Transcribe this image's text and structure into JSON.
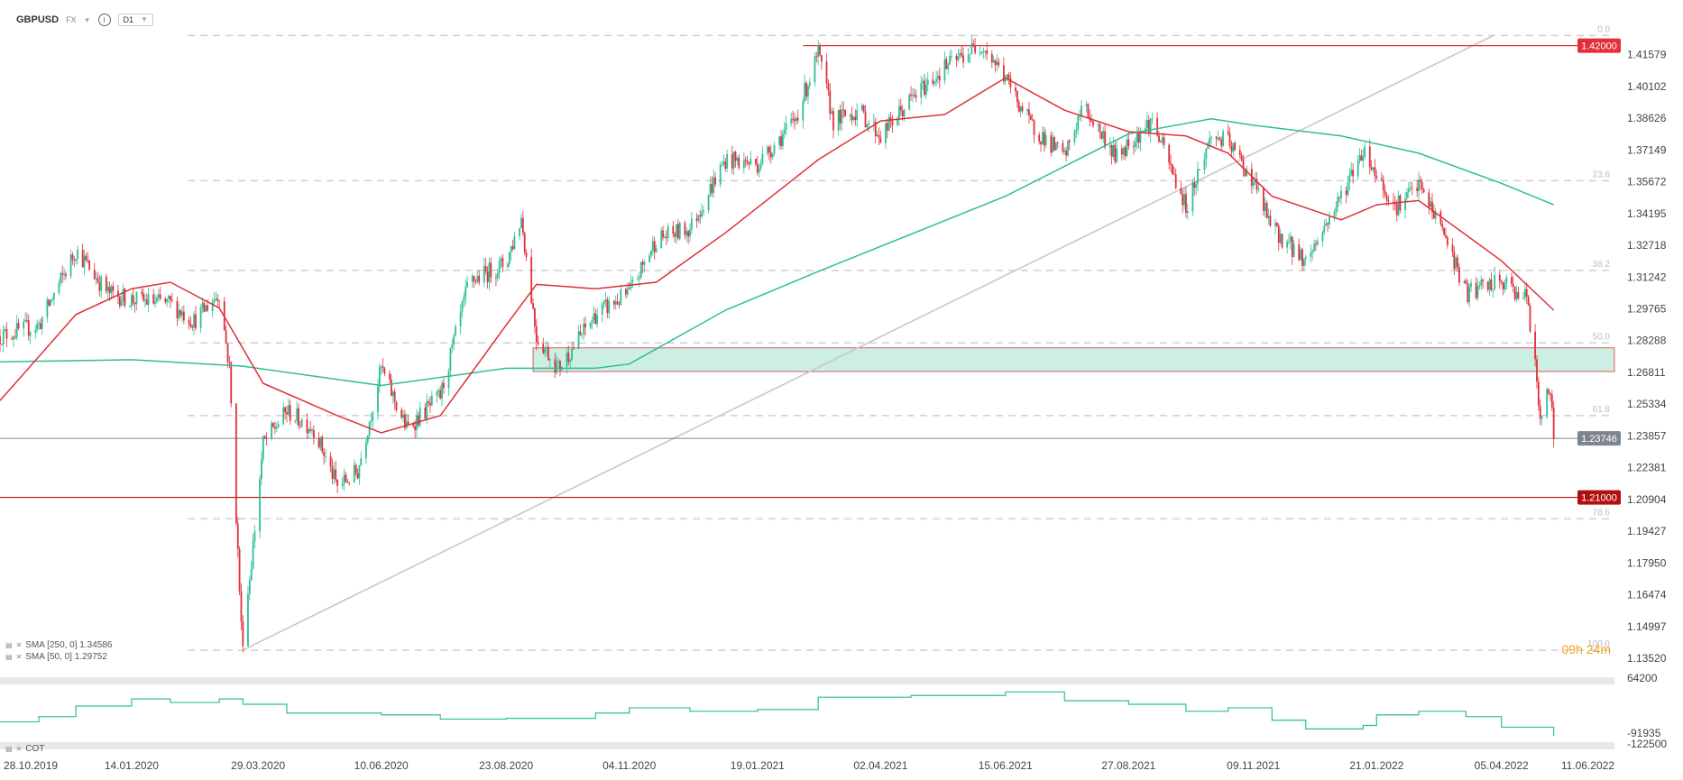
{
  "toolbar": {
    "symbol": "GBPUSD",
    "type": "FX",
    "timeframe": "D1"
  },
  "indicators": [
    {
      "label": "SMA [250, 0] 1.34586",
      "color": "#2bbf97"
    },
    {
      "label": "SMA [50, 0] 1.29752",
      "color": "#e0303a"
    }
  ],
  "cot_label": "COT",
  "timer": "09h 24m",
  "colors": {
    "up": "#2bbf97",
    "down": "#e0303a",
    "sma250": "#2bbf97",
    "sma50": "#e0303a",
    "zone": "#cdeee3"
  },
  "chart_data": {
    "type": "candlestick",
    "title": "GBPUSD",
    "timeframe": "D1",
    "x_tick_labels": [
      "28.10.2019",
      "14.01.2020",
      "29.03.2020",
      "10.06.2020",
      "23.08.2020",
      "04.11.2020",
      "19.01.2021",
      "02.04.2021",
      "15.06.2021",
      "27.08.2021",
      "09.11.2021",
      "21.01.2022",
      "05.04.2022",
      "11.06.2022"
    ],
    "y_tick_labels": [
      "1.41579",
      "1.40102",
      "1.38626",
      "1.37149",
      "1.35672",
      "1.34195",
      "1.32718",
      "1.31242",
      "1.29765",
      "1.28288",
      "1.26811",
      "1.25334",
      "1.23857",
      "1.22381",
      "1.20904",
      "1.19427",
      "1.17950",
      "1.16474",
      "1.14997",
      "1.13520"
    ],
    "ylim": [
      1.1352,
      1.432
    ],
    "current_price": "1.23746",
    "horizontal_levels": [
      {
        "label": "1.42000",
        "value": 1.42,
        "color": "#e0303a"
      },
      {
        "label": "1.21000",
        "value": 1.21,
        "color": "#b01010"
      }
    ],
    "fibonacci_levels": [
      {
        "label": "0.0",
        "value": 1.4247
      },
      {
        "label": "23.6",
        "value": 1.3572
      },
      {
        "label": "38.2",
        "value": 1.3155
      },
      {
        "label": "50.0",
        "value": 1.2818
      },
      {
        "label": "61.8",
        "value": 1.248
      },
      {
        "label": "78.6",
        "value": 1.2
      },
      {
        "label": "100.0",
        "value": 1.1389
      }
    ],
    "zone": {
      "low": 1.2685,
      "high": 1.2795
    },
    "trendline": {
      "from": {
        "x": "2020-03-20",
        "y": 1.139
      },
      "to": {
        "x": "2022-04-01",
        "y": 1.425
      }
    },
    "price_path": [
      [
        "2019-10-28",
        1.285
      ],
      [
        "2019-11-20",
        1.29
      ],
      [
        "2019-12-12",
        1.325
      ],
      [
        "2019-12-31",
        1.305
      ],
      [
        "2020-01-14",
        1.302
      ],
      [
        "2020-02-06",
        1.3
      ],
      [
        "2020-02-20",
        1.292
      ],
      [
        "2020-03-06",
        1.305
      ],
      [
        "2020-03-12",
        1.27
      ],
      [
        "2020-03-19",
        1.15
      ],
      [
        "2020-03-20",
        1.145
      ],
      [
        "2020-03-25",
        1.18
      ],
      [
        "2020-04-01",
        1.235
      ],
      [
        "2020-04-15",
        1.25
      ],
      [
        "2020-05-01",
        1.242
      ],
      [
        "2020-05-15",
        1.215
      ],
      [
        "2020-05-27",
        1.222
      ],
      [
        "2020-06-10",
        1.27
      ],
      [
        "2020-06-25",
        1.242
      ],
      [
        "2020-07-15",
        1.257
      ],
      [
        "2020-08-01",
        1.31
      ],
      [
        "2020-08-23",
        1.319
      ],
      [
        "2020-09-01",
        1.34
      ],
      [
        "2020-09-10",
        1.285
      ],
      [
        "2020-09-23",
        1.27
      ],
      [
        "2020-10-15",
        1.295
      ],
      [
        "2020-11-04",
        1.305
      ],
      [
        "2020-11-20",
        1.33
      ],
      [
        "2020-12-10",
        1.335
      ],
      [
        "2020-12-31",
        1.367
      ],
      [
        "2021-01-19",
        1.365
      ],
      [
        "2021-02-10",
        1.385
      ],
      [
        "2021-02-24",
        1.416
      ],
      [
        "2021-03-05",
        1.385
      ],
      [
        "2021-03-20",
        1.39
      ],
      [
        "2021-04-02",
        1.378
      ],
      [
        "2021-04-20",
        1.395
      ],
      [
        "2021-05-10",
        1.41
      ],
      [
        "2021-06-01",
        1.421
      ],
      [
        "2021-06-15",
        1.405
      ],
      [
        "2021-06-30",
        1.383
      ],
      [
        "2021-07-20",
        1.368
      ],
      [
        "2021-07-31",
        1.392
      ],
      [
        "2021-08-20",
        1.368
      ],
      [
        "2021-08-27",
        1.375
      ],
      [
        "2021-09-10",
        1.385
      ],
      [
        "2021-09-30",
        1.345
      ],
      [
        "2021-10-15",
        1.378
      ],
      [
        "2021-10-25",
        1.375
      ],
      [
        "2021-11-09",
        1.357
      ],
      [
        "2021-11-20",
        1.335
      ],
      [
        "2021-12-10",
        1.32
      ],
      [
        "2021-12-31",
        1.35
      ],
      [
        "2022-01-13",
        1.372
      ],
      [
        "2022-01-21",
        1.36
      ],
      [
        "2022-02-01",
        1.345
      ],
      [
        "2022-02-15",
        1.355
      ],
      [
        "2022-03-01",
        1.335
      ],
      [
        "2022-03-15",
        1.305
      ],
      [
        "2022-04-05",
        1.31
      ],
      [
        "2022-04-20",
        1.303
      ],
      [
        "2022-04-25",
        1.27
      ],
      [
        "2022-04-28",
        1.248
      ],
      [
        "2022-05-04",
        1.26
      ],
      [
        "2022-05-06",
        1.2375
      ]
    ],
    "series": [
      {
        "name": "SMA [250, 0] 1.34586",
        "points": [
          [
            "2019-10-28",
            1.273
          ],
          [
            "2020-01-14",
            1.274
          ],
          [
            "2020-03-20",
            1.271
          ],
          [
            "2020-06-10",
            1.262
          ],
          [
            "2020-08-23",
            1.27
          ],
          [
            "2020-10-15",
            1.27
          ],
          [
            "2020-11-04",
            1.272
          ],
          [
            "2020-12-31",
            1.297
          ],
          [
            "2021-02-24",
            1.315
          ],
          [
            "2021-06-15",
            1.35
          ],
          [
            "2021-08-27",
            1.379
          ],
          [
            "2021-10-15",
            1.386
          ],
          [
            "2021-11-09",
            1.383
          ],
          [
            "2021-12-31",
            1.378
          ],
          [
            "2022-02-15",
            1.37
          ],
          [
            "2022-04-05",
            1.356
          ],
          [
            "2022-05-06",
            1.346
          ]
        ]
      },
      {
        "name": "SMA [50, 0] 1.29752",
        "points": [
          [
            "2019-10-28",
            1.255
          ],
          [
            "2019-12-12",
            1.295
          ],
          [
            "2020-01-14",
            1.307
          ],
          [
            "2020-02-06",
            1.31
          ],
          [
            "2020-03-06",
            1.298
          ],
          [
            "2020-04-01",
            1.263
          ],
          [
            "2020-05-15",
            1.248
          ],
          [
            "2020-06-10",
            1.24
          ],
          [
            "2020-07-15",
            1.248
          ],
          [
            "2020-08-23",
            1.29
          ],
          [
            "2020-09-10",
            1.309
          ],
          [
            "2020-10-15",
            1.307
          ],
          [
            "2020-11-20",
            1.31
          ],
          [
            "2020-12-31",
            1.333
          ],
          [
            "2021-02-24",
            1.367
          ],
          [
            "2021-04-02",
            1.385
          ],
          [
            "2021-05-10",
            1.388
          ],
          [
            "2021-06-15",
            1.405
          ],
          [
            "2021-07-20",
            1.39
          ],
          [
            "2021-08-27",
            1.38
          ],
          [
            "2021-09-30",
            1.378
          ],
          [
            "2021-10-25",
            1.37
          ],
          [
            "2021-11-20",
            1.35
          ],
          [
            "2021-12-31",
            1.339
          ],
          [
            "2022-01-21",
            1.346
          ],
          [
            "2022-02-15",
            1.348
          ],
          [
            "2022-04-05",
            1.32
          ],
          [
            "2022-05-06",
            1.297
          ]
        ]
      }
    ],
    "sub_panel": {
      "name": "COT",
      "y_tick_labels": [
        "64200",
        "-91935",
        "-122500"
      ],
      "ylim": [
        -122500,
        64200
      ],
      "points": [
        [
          "2019-10-28",
          -60000
        ],
        [
          "2019-11-20",
          -45000
        ],
        [
          "2019-12-12",
          -15000
        ],
        [
          "2020-01-14",
          5000
        ],
        [
          "2020-02-06",
          -5000
        ],
        [
          "2020-03-06",
          5000
        ],
        [
          "2020-03-20",
          -10000
        ],
        [
          "2020-04-15",
          -35000
        ],
        [
          "2020-06-10",
          -40000
        ],
        [
          "2020-07-15",
          -52000
        ],
        [
          "2020-08-23",
          -50000
        ],
        [
          "2020-10-15",
          -35000
        ],
        [
          "2020-11-04",
          -20000
        ],
        [
          "2020-12-10",
          -30000
        ],
        [
          "2021-01-19",
          -25000
        ],
        [
          "2021-02-24",
          10000
        ],
        [
          "2021-04-20",
          15000
        ],
        [
          "2021-06-15",
          25000
        ],
        [
          "2021-07-20",
          0
        ],
        [
          "2021-08-27",
          -10000
        ],
        [
          "2021-09-30",
          -30000
        ],
        [
          "2021-10-25",
          -20000
        ],
        [
          "2021-11-20",
          -55000
        ],
        [
          "2021-12-10",
          -80000
        ],
        [
          "2022-01-13",
          -70000
        ],
        [
          "2022-01-21",
          -40000
        ],
        [
          "2022-02-15",
          -30000
        ],
        [
          "2022-03-15",
          -45000
        ],
        [
          "2022-04-05",
          -75000
        ],
        [
          "2022-05-06",
          -100000
        ]
      ]
    }
  }
}
